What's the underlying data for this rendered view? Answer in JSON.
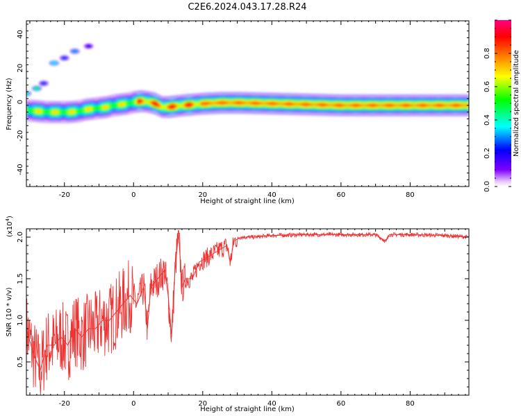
{
  "title": "C2E6.2024.043.17.28.R24",
  "chart_data": [
    {
      "type": "heatmap",
      "xlabel": "Height of straight line (km)",
      "ylabel": "Frequency (Hz)",
      "xlim": [
        -31,
        97
      ],
      "ylim": [
        -50,
        48
      ],
      "x_ticks": [
        "-20",
        "0",
        "20",
        "40",
        "60",
        "80"
      ],
      "y_ticks": [
        "40",
        "20",
        "0",
        "-20",
        "-40"
      ],
      "colorbar": {
        "label": "Normalized spectral amplitude",
        "range": [
          0.0,
          1.0
        ],
        "ticks": [
          "0.0",
          "0.2",
          "0.4",
          "0.6",
          "0.8"
        ],
        "colormap": [
          "#ffffff",
          "#8000ff",
          "#0000ff",
          "#00ffff",
          "#00ff00",
          "#ffff00",
          "#ff8000",
          "#ff0000",
          "#ff0080"
        ]
      },
      "ridge": [
        {
          "x": -31,
          "y": -5.0,
          "amp": 0.7
        },
        {
          "x": -28,
          "y": -5.5,
          "amp": 0.65
        },
        {
          "x": -25,
          "y": -6.0,
          "amp": 0.75
        },
        {
          "x": -22,
          "y": -6.0,
          "amp": 0.8
        },
        {
          "x": -19,
          "y": -6.0,
          "amp": 0.85
        },
        {
          "x": -16,
          "y": -5.5,
          "amp": 0.7
        },
        {
          "x": -14,
          "y": -4.5,
          "amp": 0.8
        },
        {
          "x": -12,
          "y": -4.0,
          "amp": 0.65
        },
        {
          "x": -10,
          "y": -3.5,
          "amp": 0.75
        },
        {
          "x": -8,
          "y": -3.0,
          "amp": 0.6
        },
        {
          "x": -6,
          "y": -2.0,
          "amp": 0.75
        },
        {
          "x": -4,
          "y": -1.5,
          "amp": 0.85
        },
        {
          "x": -2,
          "y": -1.0,
          "amp": 0.7
        },
        {
          "x": 0,
          "y": 0.0,
          "amp": 0.85
        },
        {
          "x": 2,
          "y": 0.5,
          "amp": 0.75
        },
        {
          "x": 4,
          "y": 0.0,
          "amp": 0.85
        },
        {
          "x": 6,
          "y": -1.0,
          "amp": 0.65
        },
        {
          "x": 8,
          "y": -3.0,
          "amp": 0.8
        },
        {
          "x": 10,
          "y": -3.0,
          "amp": 0.75
        },
        {
          "x": 12,
          "y": -2.5,
          "amp": 0.65
        },
        {
          "x": 14,
          "y": -2.0,
          "amp": 0.85
        },
        {
          "x": 17,
          "y": -1.5,
          "amp": 0.55
        },
        {
          "x": 20,
          "y": -1.0,
          "amp": 0.5
        },
        {
          "x": 25,
          "y": -0.5,
          "amp": 0.5
        },
        {
          "x": 30,
          "y": -0.5,
          "amp": 0.45
        },
        {
          "x": 40,
          "y": -1.0,
          "amp": 0.45
        },
        {
          "x": 50,
          "y": -1.5,
          "amp": 0.5
        },
        {
          "x": 60,
          "y": -2.0,
          "amp": 0.55
        },
        {
          "x": 70,
          "y": -2.0,
          "amp": 0.7
        },
        {
          "x": 80,
          "y": -2.0,
          "amp": 0.85
        },
        {
          "x": 90,
          "y": -2.0,
          "amp": 0.9
        },
        {
          "x": 97,
          "y": -2.0,
          "amp": 0.9
        }
      ],
      "secondary_trace": [
        {
          "x": -31,
          "y": 5,
          "amp": 0.4
        },
        {
          "x": -28,
          "y": 8,
          "amp": 0.45
        },
        {
          "x": -26,
          "y": 11,
          "amp": 0.25
        },
        {
          "x": -23,
          "y": 23,
          "amp": 0.35
        },
        {
          "x": -20,
          "y": 26,
          "amp": 0.25
        },
        {
          "x": -17,
          "y": 30,
          "amp": 0.3
        },
        {
          "x": -13,
          "y": 33,
          "amp": 0.2
        }
      ]
    },
    {
      "type": "line",
      "xlabel": "Height of straight line (km)",
      "ylabel": "SNR (10 * v/v)",
      "y_scale_note": "(x10",
      "y_scale_exp": "4",
      "series_color": "#ee3333",
      "xlim": [
        -31,
        97
      ],
      "ylim": [
        0.1,
        2.1
      ],
      "x_ticks": [
        "-20",
        "0",
        "20",
        "40",
        "60",
        "80"
      ],
      "y_ticks": [
        "0.5",
        "1.0",
        "1.5",
        "2.0"
      ],
      "x": [
        -31,
        -29,
        -27,
        -25,
        -23,
        -21,
        -19,
        -17,
        -15,
        -13,
        -11,
        -9,
        -7,
        -5,
        -3,
        -1,
        1,
        3,
        4,
        5,
        7,
        9,
        10,
        11,
        12,
        13,
        14,
        15,
        17,
        19,
        21,
        23,
        25,
        27,
        28,
        29,
        31,
        35,
        40,
        50,
        60,
        70,
        73,
        74,
        80,
        90,
        97
      ],
      "y": [
        0.9,
        0.6,
        0.4,
        0.7,
        0.7,
        0.8,
        0.7,
        0.9,
        0.8,
        0.9,
        0.9,
        1.0,
        1.0,
        1.1,
        1.2,
        1.3,
        1.2,
        1.4,
        0.9,
        1.4,
        1.5,
        1.6,
        1.3,
        0.8,
        1.6,
        2.05,
        1.4,
        1.5,
        1.5,
        1.7,
        1.75,
        1.8,
        1.85,
        1.9,
        1.7,
        1.95,
        2.0,
        2.0,
        2.02,
        2.03,
        2.03,
        2.03,
        1.95,
        2.03,
        2.03,
        2.02,
        2.0
      ]
    }
  ]
}
